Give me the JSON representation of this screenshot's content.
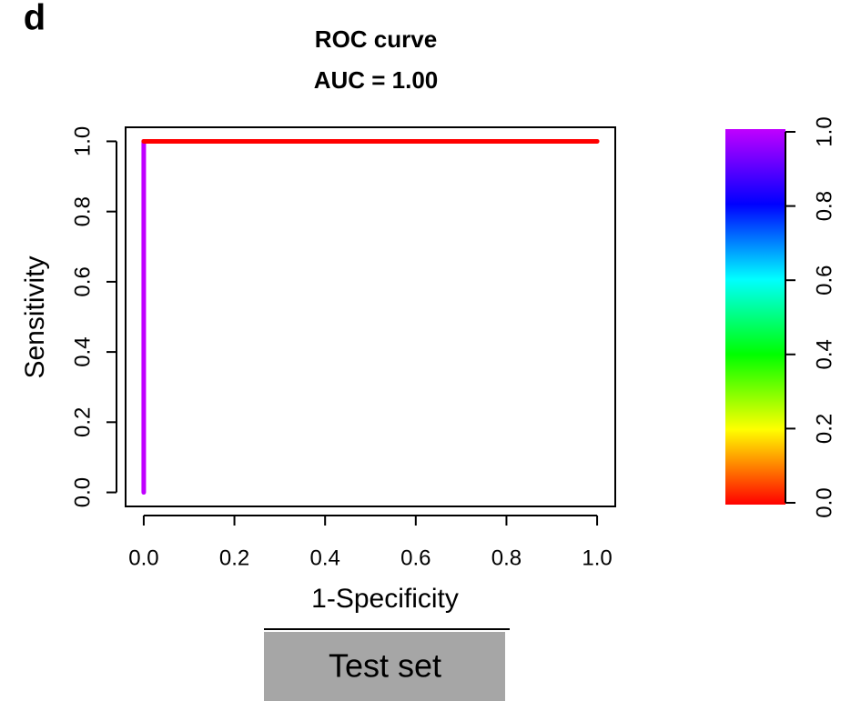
{
  "chart_data": {
    "type": "line",
    "panel_label": "d",
    "title": "ROC curve",
    "subtitle": "AUC = 1.00",
    "xlabel": "1-Specificity",
    "ylabel": "Sensitivity",
    "caption": "Test set",
    "series": [
      {
        "x": [
          0,
          0,
          1
        ],
        "values": [
          0,
          1,
          1
        ],
        "colors": [
          "#c000ff",
          "#ff0000",
          "#ff0000"
        ]
      }
    ],
    "xlim": [
      -0.04,
      1.04
    ],
    "ylim": [
      -0.04,
      1.04
    ],
    "xticks": [
      {
        "value": 0,
        "label": "0.0"
      },
      {
        "value": 0.2,
        "label": "0.2"
      },
      {
        "value": 0.4,
        "label": "0.4"
      },
      {
        "value": 0.6,
        "label": "0.6"
      },
      {
        "value": 0.8,
        "label": "0.8"
      },
      {
        "value": 1,
        "label": "1.0"
      }
    ],
    "yticks": [
      {
        "value": 0,
        "label": "0.0"
      },
      {
        "value": 0.2,
        "label": "0.2"
      },
      {
        "value": 0.4,
        "label": "0.4"
      },
      {
        "value": 0.6,
        "label": "0.6"
      },
      {
        "value": 0.8,
        "label": "0.8"
      },
      {
        "value": 1,
        "label": "1.0"
      }
    ],
    "colorbar": {
      "ylim": [
        0,
        1
      ],
      "yticks": [
        {
          "value": 0,
          "label": "0.0"
        },
        {
          "value": 0.2,
          "label": "0.2"
        },
        {
          "value": 0.4,
          "label": "0.4"
        },
        {
          "value": 0.6,
          "label": "0.6"
        },
        {
          "value": 0.8,
          "label": "0.8"
        },
        {
          "value": 1,
          "label": "1.0"
        }
      ],
      "colors": [
        "#ff0000",
        "#ffff00",
        "#00ff00",
        "#00ffff",
        "#0000ff",
        "#c000ff"
      ]
    }
  }
}
